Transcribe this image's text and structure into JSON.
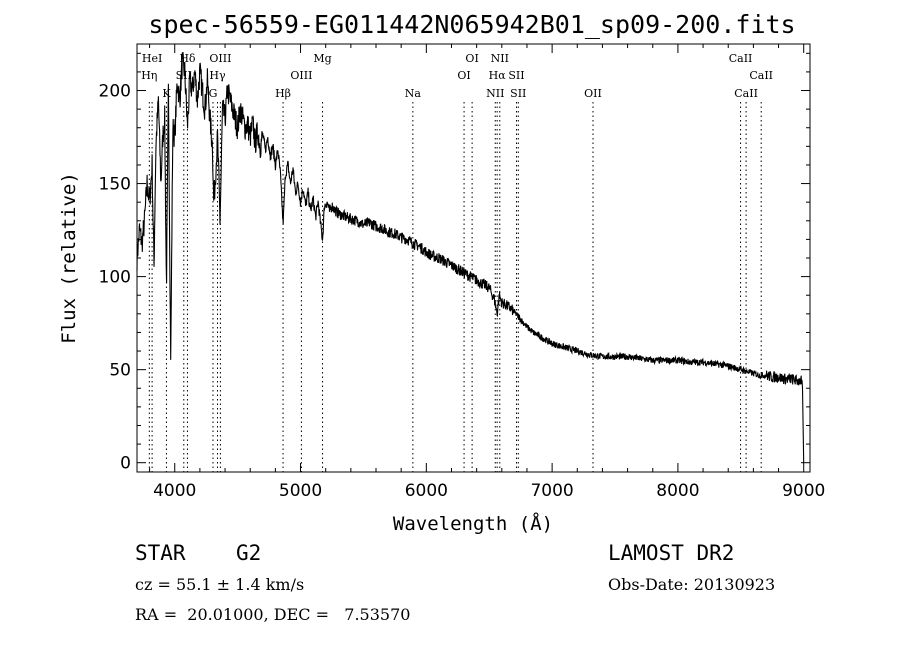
{
  "chart_data": {
    "type": "line",
    "title": "spec-56559-EG011442N065942B01_sp09-200.fits",
    "xlabel": "Wavelength (Å)",
    "ylabel": "Flux (relative)",
    "xlim": [
      3700,
      9050
    ],
    "ylim": [
      -5,
      225
    ],
    "xticks": [
      4000,
      5000,
      6000,
      7000,
      8000,
      9000
    ],
    "yticks": [
      0,
      50,
      100,
      150,
      200
    ],
    "grid": false,
    "series": [
      {
        "x": [
          3700,
          3720,
          3740,
          3760,
          3780,
          3800,
          3820,
          3835,
          3850,
          3870,
          3890,
          3905,
          3920,
          3934,
          3950,
          3968,
          3985,
          4000,
          4020,
          4040,
          4060,
          4080,
          4101,
          4120,
          4140,
          4160,
          4180,
          4200,
          4220,
          4240,
          4260,
          4280,
          4300,
          4310,
          4320,
          4340,
          4360,
          4380,
          4400,
          4420,
          4440,
          4460,
          4480,
          4500,
          4520,
          4540,
          4560,
          4580,
          4600,
          4620,
          4640,
          4660,
          4680,
          4700,
          4720,
          4740,
          4760,
          4780,
          4800,
          4820,
          4840,
          4861,
          4880,
          4900,
          4920,
          4940,
          4960,
          4980,
          5000,
          5020,
          5040,
          5060,
          5080,
          5100,
          5120,
          5140,
          5160,
          5175,
          5190,
          5210,
          5230,
          5250,
          5270,
          5300,
          5330,
          5360,
          5400,
          5450,
          5500,
          5550,
          5600,
          5650,
          5700,
          5750,
          5800,
          5850,
          5893,
          5950,
          6000,
          6050,
          6100,
          6150,
          6200,
          6250,
          6300,
          6350,
          6400,
          6450,
          6500,
          6540,
          6563,
          6580,
          6600,
          6650,
          6700,
          6750,
          6800,
          6850,
          6900,
          6950,
          7000,
          7050,
          7100,
          7150,
          7200,
          7300,
          7400,
          7500,
          7600,
          7700,
          7800,
          7900,
          8000,
          8100,
          8200,
          8300,
          8400,
          8450,
          8500,
          8550,
          8600,
          8650,
          8700,
          8750,
          8800,
          8850,
          8900,
          8950,
          8980,
          8990,
          9000
        ],
        "y": [
          110,
          125,
          118,
          130,
          150,
          140,
          160,
          105,
          170,
          195,
          150,
          175,
          185,
          95,
          200,
          55,
          180,
          175,
          205,
          195,
          215,
          210,
          180,
          205,
          200,
          210,
          195,
          210,
          200,
          190,
          205,
          185,
          170,
          140,
          150,
          175,
          130,
          190,
          185,
          200,
          195,
          190,
          185,
          180,
          190,
          185,
          180,
          182,
          175,
          182,
          172,
          178,
          170,
          176,
          168,
          175,
          165,
          170,
          160,
          168,
          155,
          128,
          155,
          160,
          150,
          158,
          145,
          150,
          140,
          148,
          138,
          145,
          135,
          142,
          132,
          140,
          128,
          120,
          138,
          140,
          135,
          138,
          136,
          134,
          133,
          132,
          131,
          130,
          128,
          129,
          127,
          126,
          124,
          123,
          121,
          120,
          118,
          116,
          113,
          111,
          110,
          108,
          106,
          104,
          102,
          100,
          98,
          96,
          94,
          88,
          80,
          90,
          86,
          84,
          81,
          77,
          73,
          70,
          68,
          66,
          64,
          63,
          62,
          61,
          60,
          58,
          57,
          57,
          57,
          56,
          55,
          55,
          55,
          54,
          54,
          53,
          52,
          51,
          50,
          49,
          48,
          47,
          47,
          46,
          46,
          45,
          45,
          44,
          44,
          40,
          0
        ]
      }
    ],
    "lines": [
      {
        "wl": 3798,
        "label": "Hη",
        "row": 1
      },
      {
        "wl": 3820,
        "label": "HeI",
        "row": 0
      },
      {
        "wl": 3934,
        "label": "K",
        "row": 2
      },
      {
        "wl": 4072,
        "label": "SII",
        "row": 1
      },
      {
        "wl": 4101,
        "label": "Hδ",
        "row": 0
      },
      {
        "wl": 4304,
        "label": "G",
        "row": 2
      },
      {
        "wl": 4340,
        "label": "Hγ",
        "row": 1
      },
      {
        "wl": 4363,
        "label": "OIII",
        "row": 0
      },
      {
        "wl": 4861,
        "label": "Hβ",
        "row": 2
      },
      {
        "wl": 5007,
        "label": "OIII",
        "row": 1
      },
      {
        "wl": 5175,
        "label": "Mg",
        "row": 0
      },
      {
        "wl": 5893,
        "label": "Na",
        "row": 2
      },
      {
        "wl": 6300,
        "label": "OI",
        "row": 1
      },
      {
        "wl": 6364,
        "label": "OI",
        "row": 0
      },
      {
        "wl": 6548,
        "label": "NII",
        "row": 2
      },
      {
        "wl": 6563,
        "label": "Hα",
        "row": 1
      },
      {
        "wl": 6584,
        "label": "NII",
        "row": 0
      },
      {
        "wl": 6717,
        "label": "SII",
        "row": 1
      },
      {
        "wl": 6731,
        "label": "SII",
        "row": 2
      },
      {
        "wl": 7325,
        "label": "OII",
        "row": 2
      },
      {
        "wl": 8498,
        "label": "CaII",
        "row": 0
      },
      {
        "wl": 8542,
        "label": "CaII",
        "row": 2
      },
      {
        "wl": 8662,
        "label": "CaII",
        "row": 1
      }
    ]
  },
  "info": {
    "object_type": "STAR",
    "subclass": "G2",
    "survey": "LAMOST DR2",
    "cz": "cz = 55.1 ± 1.4 km/s",
    "obs_date": "Obs-Date: 20130923",
    "coords": "RA =  20.01000, DEC =   7.53570"
  }
}
